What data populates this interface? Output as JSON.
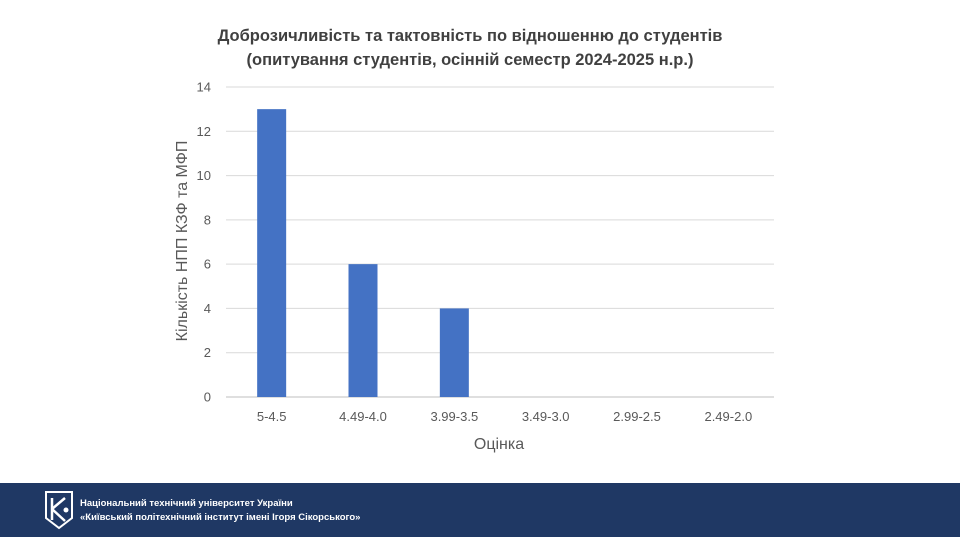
{
  "chart_data": {
    "type": "bar",
    "title": "Доброзичливість та тактовність по відношенню до студентів",
    "subtitle": "(опитування студентів, осінній семестр 2024-2025 н.р.)",
    "xlabel": "Оцінка",
    "ylabel": "Кількість НПП КЗФ та МФП",
    "categories": [
      "5-4.5",
      "4.49-4.0",
      "3.99-3.5",
      "3.49-3.0",
      "2.99-2.5",
      "2.49-2.0"
    ],
    "values": [
      13,
      6,
      4,
      0,
      0,
      0
    ],
    "ylim": [
      0,
      14
    ],
    "yticks": [
      0,
      2,
      4,
      6,
      8,
      10,
      12,
      14
    ],
    "grid": true,
    "bar_color": "#4472c4"
  },
  "footer": {
    "line1": "Національний технічний університет України",
    "line2": "«Київський політехнічний інститут імені Ігоря Сікорського»",
    "background": "#1f3864",
    "logo_icon": "kpi-logo-icon"
  }
}
